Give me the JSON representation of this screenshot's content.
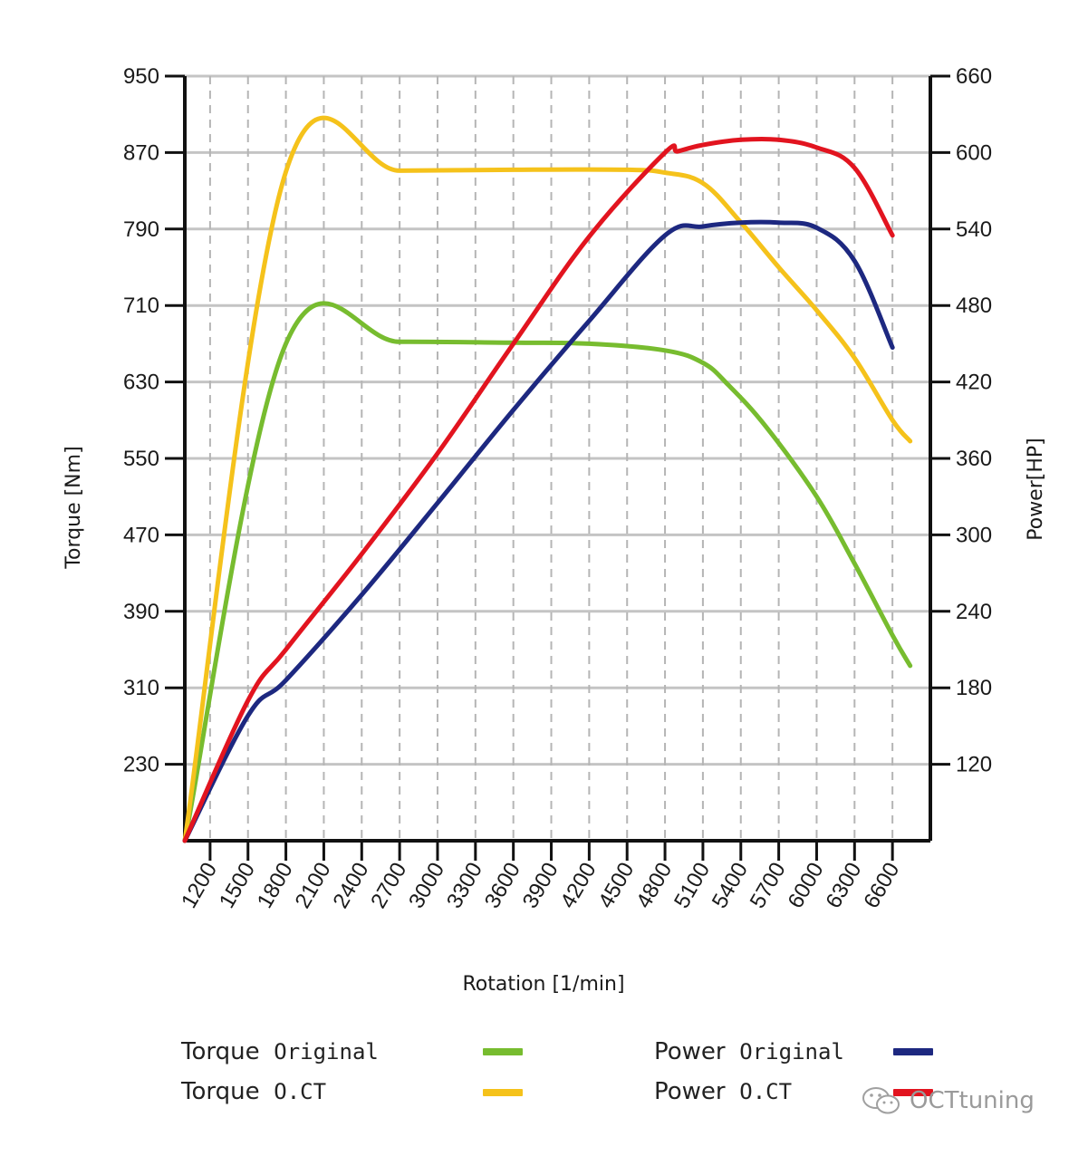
{
  "chart_data": {
    "type": "line",
    "xlabel": "Rotation [1/min]",
    "ylabel_left": "Torque [Nm]",
    "ylabel_right": "Power[HP]",
    "x_ticks": [
      1200,
      1500,
      1800,
      2100,
      2400,
      2700,
      3000,
      3300,
      3600,
      3900,
      4200,
      4500,
      4800,
      5100,
      5400,
      5700,
      6000,
      6300,
      6600
    ],
    "xlim": [
      1000,
      6900
    ],
    "y_left_ticks": [
      230,
      310,
      390,
      470,
      550,
      630,
      710,
      790,
      870,
      950
    ],
    "y_left_lim": [
      150,
      950
    ],
    "y_right_ticks": [
      120,
      180,
      240,
      300,
      360,
      420,
      480,
      540,
      600,
      660
    ],
    "y_right_lim": [
      60,
      660
    ],
    "grid": true,
    "series": [
      {
        "name": "Torque Original",
        "axis": "left",
        "color": "#77bc2f",
        "points": [
          [
            1000,
            150
          ],
          [
            1800,
            670
          ],
          [
            2700,
            672
          ],
          [
            3600,
            671
          ],
          [
            4200,
            670
          ],
          [
            4800,
            663
          ],
          [
            5100,
            650
          ],
          [
            5300,
            627
          ],
          [
            5600,
            583
          ],
          [
            6000,
            510
          ],
          [
            6300,
            440
          ],
          [
            6600,
            365
          ],
          [
            6740,
            333
          ]
        ]
      },
      {
        "name": "Torque O.CT",
        "axis": "left",
        "color": "#f5c21b",
        "points": [
          [
            1000,
            150
          ],
          [
            1800,
            850
          ],
          [
            2700,
            851
          ],
          [
            3600,
            852
          ],
          [
            4500,
            852
          ],
          [
            4800,
            849
          ],
          [
            5100,
            838
          ],
          [
            5400,
            797
          ],
          [
            5700,
            750
          ],
          [
            6000,
            705
          ],
          [
            6300,
            655
          ],
          [
            6600,
            590
          ],
          [
            6740,
            568
          ]
        ]
      },
      {
        "name": "Power Original",
        "axis": "right",
        "color": "#1d2880",
        "points": [
          [
            1000,
            60
          ],
          [
            1500,
            158
          ],
          [
            1800,
            186
          ],
          [
            2400,
            253
          ],
          [
            3000,
            325
          ],
          [
            3600,
            398
          ],
          [
            4200,
            468
          ],
          [
            4800,
            535
          ],
          [
            5100,
            542
          ],
          [
            5400,
            545
          ],
          [
            5700,
            545
          ],
          [
            6000,
            541
          ],
          [
            6300,
            515
          ],
          [
            6600,
            447
          ]
        ]
      },
      {
        "name": "Power O.CT",
        "axis": "right",
        "color": "#e2141f",
        "points": [
          [
            1000,
            60
          ],
          [
            1500,
            170
          ],
          [
            1800,
            210
          ],
          [
            2400,
            285
          ],
          [
            3000,
            364
          ],
          [
            3600,
            450
          ],
          [
            4200,
            534
          ],
          [
            4800,
            600
          ],
          [
            4900,
            601
          ],
          [
            5100,
            606
          ],
          [
            5400,
            610
          ],
          [
            5700,
            610
          ],
          [
            6000,
            604
          ],
          [
            6300,
            588
          ],
          [
            6600,
            535
          ]
        ]
      }
    ]
  },
  "legend": {
    "torque_original_a": "Torque",
    "torque_original_b": "Original",
    "torque_oct_a": "Torque",
    "torque_oct_b": "O.CT",
    "power_original_a": "Power",
    "power_original_b": "Original",
    "power_oct_a": "Power",
    "power_oct_b": "O.CT",
    "colors": {
      "torque_original": "#77bc2f",
      "torque_oct": "#f5c21b",
      "power_original": "#1d2880",
      "power_oct": "#e2141f"
    }
  },
  "watermark": {
    "text": "OCTtuning",
    "icon": "wechat-icon"
  }
}
